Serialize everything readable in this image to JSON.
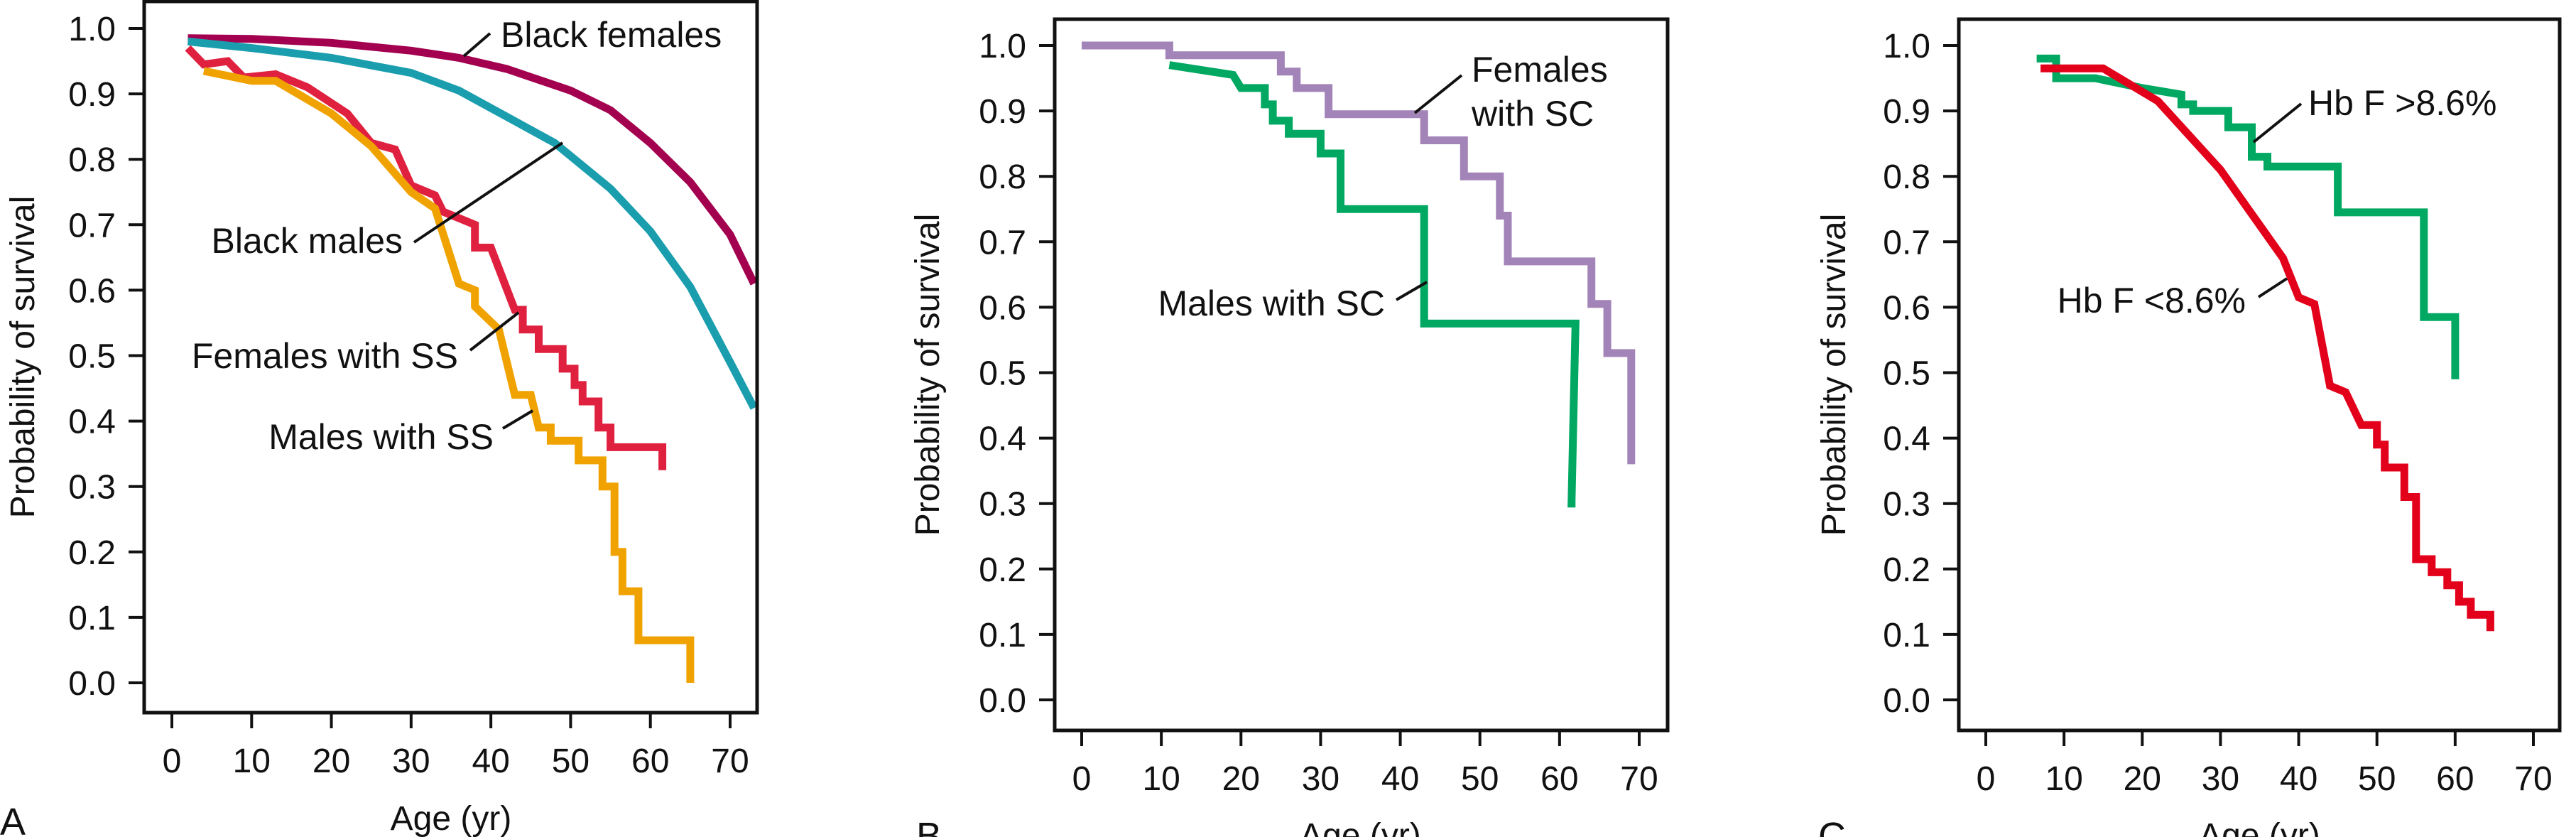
{
  "chart_data": [
    {
      "type": "line",
      "panel_label": "A",
      "xlabel": "Age (yr)",
      "ylabel": "Probability of survival",
      "xlim": [
        -3,
        73
      ],
      "ylim": [
        -0.05,
        1.03
      ],
      "xticks": [
        "0",
        "10",
        "20",
        "30",
        "40",
        "50",
        "60",
        "70"
      ],
      "yticks": [
        "0.0",
        "0.1",
        "0.2",
        "0.3",
        "0.4",
        "0.5",
        "0.6",
        "0.7",
        "0.8",
        "0.9",
        "1.0"
      ],
      "grid": false,
      "series": [
        {
          "name": "Black females",
          "color": "#a3004f",
          "step": false,
          "points": [
            [
              2,
              0.985
            ],
            [
              10,
              0.984
            ],
            [
              20,
              0.978
            ],
            [
              30,
              0.966
            ],
            [
              36,
              0.955
            ],
            [
              42,
              0.938
            ],
            [
              50,
              0.905
            ],
            [
              55,
              0.875
            ],
            [
              60,
              0.825
            ],
            [
              65,
              0.765
            ],
            [
              70,
              0.685
            ],
            [
              73,
              0.61
            ]
          ]
        },
        {
          "name": "Black males",
          "color": "#1a9eae",
          "step": false,
          "points": [
            [
              2,
              0.98
            ],
            [
              10,
              0.97
            ],
            [
              20,
              0.955
            ],
            [
              30,
              0.932
            ],
            [
              36,
              0.905
            ],
            [
              42,
              0.865
            ],
            [
              48,
              0.825
            ],
            [
              55,
              0.755
            ],
            [
              60,
              0.69
            ],
            [
              65,
              0.605
            ],
            [
              70,
              0.49
            ],
            [
              73,
              0.42
            ]
          ]
        },
        {
          "name": "Females with SS",
          "color": "#e0203f",
          "step": false,
          "points": [
            [
              2,
              0.97
            ],
            [
              4,
              0.945
            ],
            [
              7,
              0.95
            ],
            [
              9,
              0.925
            ],
            [
              13,
              0.93
            ],
            [
              17,
              0.91
            ],
            [
              22,
              0.87
            ],
            [
              25,
              0.825
            ],
            [
              28,
              0.815
            ],
            [
              30,
              0.76
            ],
            [
              33,
              0.745
            ],
            [
              34,
              0.72
            ],
            [
              38,
              0.7
            ],
            [
              38,
              0.665
            ],
            [
              40,
              0.665
            ],
            [
              43,
              0.57
            ],
            [
              44,
              0.57
            ],
            [
              44,
              0.54
            ],
            [
              46,
              0.54
            ],
            [
              46,
              0.51
            ],
            [
              49,
              0.51
            ],
            [
              49,
              0.48
            ],
            [
              50.5,
              0.48
            ],
            [
              50.5,
              0.455
            ],
            [
              51.5,
              0.455
            ],
            [
              51.5,
              0.43
            ],
            [
              53.5,
              0.43
            ],
            [
              53.5,
              0.39
            ],
            [
              55,
              0.39
            ],
            [
              55,
              0.36
            ],
            [
              61.5,
              0.36
            ],
            [
              61.5,
              0.325
            ]
          ]
        },
        {
          "name": "Males with SS",
          "color": "#f0a300",
          "step": false,
          "points": [
            [
              4,
              0.935
            ],
            [
              10,
              0.92
            ],
            [
              13,
              0.92
            ],
            [
              20,
              0.87
            ],
            [
              25,
              0.82
            ],
            [
              30,
              0.75
            ],
            [
              33,
              0.725
            ],
            [
              36,
              0.61
            ],
            [
              38,
              0.6
            ],
            [
              38,
              0.575
            ],
            [
              41,
              0.54
            ],
            [
              43,
              0.44
            ],
            [
              45,
              0.44
            ],
            [
              46,
              0.39
            ],
            [
              47.5,
              0.39
            ],
            [
              47.5,
              0.37
            ],
            [
              51,
              0.37
            ],
            [
              51,
              0.34
            ],
            [
              54,
              0.34
            ],
            [
              54,
              0.3
            ],
            [
              55.5,
              0.3
            ],
            [
              55.5,
              0.2
            ],
            [
              56.5,
              0.2
            ],
            [
              56.5,
              0.14
            ],
            [
              58.5,
              0.14
            ],
            [
              58.5,
              0.065
            ],
            [
              65,
              0.065
            ],
            [
              65,
              0.0
            ]
          ]
        }
      ]
    },
    {
      "type": "line",
      "panel_label": "B",
      "xlabel": "Age (yr)",
      "ylabel": "Probability of survival",
      "xlim": [
        -3,
        73
      ],
      "ylim": [
        -0.05,
        1.04
      ],
      "xticks": [
        "0",
        "10",
        "20",
        "30",
        "40",
        "50",
        "60",
        "70"
      ],
      "yticks": [
        "0.0",
        "0.1",
        "0.2",
        "0.3",
        "0.4",
        "0.5",
        "0.6",
        "0.7",
        "0.8",
        "0.9",
        "1.0"
      ],
      "grid": false,
      "series": [
        {
          "name": "Females with SC",
          "color": "#a384b8",
          "step": false,
          "points": [
            [
              0,
              1.0
            ],
            [
              11,
              1.0
            ],
            [
              11,
              0.985
            ],
            [
              25,
              0.985
            ],
            [
              25,
              0.96
            ],
            [
              27,
              0.96
            ],
            [
              27,
              0.935
            ],
            [
              31,
              0.935
            ],
            [
              31,
              0.895
            ],
            [
              43,
              0.895
            ],
            [
              43,
              0.855
            ],
            [
              48,
              0.855
            ],
            [
              48,
              0.8
            ],
            [
              52.5,
              0.8
            ],
            [
              52.5,
              0.74
            ],
            [
              53.5,
              0.74
            ],
            [
              53.5,
              0.67
            ],
            [
              64,
              0.67
            ],
            [
              64,
              0.605
            ],
            [
              66,
              0.605
            ],
            [
              66,
              0.53
            ],
            [
              69,
              0.53
            ],
            [
              69,
              0.36
            ]
          ]
        },
        {
          "name": "Males with SC",
          "color": "#00a862",
          "step": false,
          "points": [
            [
              11,
              0.97
            ],
            [
              19,
              0.955
            ],
            [
              20,
              0.935
            ],
            [
              23,
              0.935
            ],
            [
              23,
              0.91
            ],
            [
              24,
              0.91
            ],
            [
              24,
              0.885
            ],
            [
              26,
              0.885
            ],
            [
              26,
              0.865
            ],
            [
              30,
              0.865
            ],
            [
              30,
              0.835
            ],
            [
              32.5,
              0.835
            ],
            [
              32.5,
              0.75
            ],
            [
              43,
              0.75
            ],
            [
              43,
              0.575
            ],
            [
              62,
              0.575
            ],
            [
              61.5,
              0.3
            ],
            [
              62,
              0.3
            ]
          ]
        }
      ]
    },
    {
      "type": "line",
      "panel_label": "C",
      "xlabel": "Age (yr)",
      "ylabel": "Probability of survival",
      "xlim": [
        -3,
        73
      ],
      "ylim": [
        -0.05,
        1.04
      ],
      "xticks": [
        "0",
        "10",
        "20",
        "30",
        "40",
        "50",
        "60",
        "70"
      ],
      "yticks": [
        "0.0",
        "0.1",
        "0.2",
        "0.3",
        "0.4",
        "0.5",
        "0.6",
        "0.7",
        "0.8",
        "0.9",
        "1.0"
      ],
      "grid": false,
      "series": [
        {
          "name": "Hb F >8.6%",
          "color": "#00a862",
          "step": false,
          "points": [
            [
              6.5,
              0.98
            ],
            [
              9,
              0.98
            ],
            [
              9,
              0.95
            ],
            [
              14,
              0.95
            ],
            [
              20,
              0.935
            ],
            [
              25,
              0.925
            ],
            [
              25,
              0.91
            ],
            [
              26.5,
              0.91
            ],
            [
              26.5,
              0.9
            ],
            [
              31,
              0.9
            ],
            [
              31,
              0.875
            ],
            [
              34,
              0.875
            ],
            [
              34,
              0.83
            ],
            [
              36,
              0.83
            ],
            [
              36,
              0.815
            ],
            [
              45,
              0.815
            ],
            [
              45,
              0.745
            ],
            [
              56,
              0.745
            ],
            [
              56,
              0.585
            ],
            [
              60,
              0.585
            ],
            [
              60,
              0.49
            ]
          ]
        },
        {
          "name": "Hb F <8.6%",
          "color": "#e2001a",
          "step": false,
          "points": [
            [
              7,
              0.965
            ],
            [
              15,
              0.965
            ],
            [
              22,
              0.915
            ],
            [
              30,
              0.81
            ],
            [
              38,
              0.675
            ],
            [
              40,
              0.615
            ],
            [
              42,
              0.605
            ],
            [
              44,
              0.48
            ],
            [
              46,
              0.47
            ],
            [
              48,
              0.42
            ],
            [
              50,
              0.42
            ],
            [
              50,
              0.39
            ],
            [
              51,
              0.39
            ],
            [
              51,
              0.355
            ],
            [
              53.5,
              0.355
            ],
            [
              53.5,
              0.31
            ],
            [
              55,
              0.31
            ],
            [
              55,
              0.215
            ],
            [
              57,
              0.215
            ],
            [
              57,
              0.195
            ],
            [
              59,
              0.195
            ],
            [
              59,
              0.175
            ],
            [
              60.5,
              0.175
            ],
            [
              60.5,
              0.15
            ],
            [
              62,
              0.15
            ],
            [
              62,
              0.13
            ],
            [
              64.5,
              0.13
            ],
            [
              64.5,
              0.105
            ]
          ]
        }
      ]
    }
  ]
}
